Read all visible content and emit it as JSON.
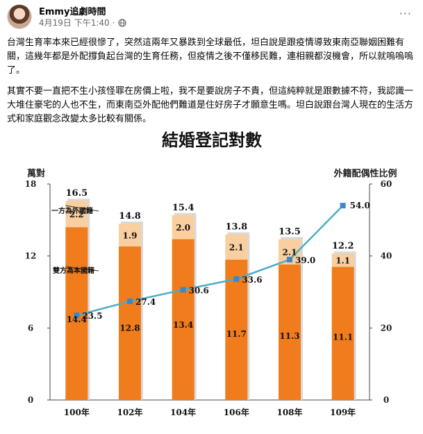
{
  "post": {
    "author": "Emmy追劇時間",
    "date": "4月19日 下午1:40",
    "separator": "·",
    "more": "···",
    "paragraphs": [
      "台灣生育率本來已經很慘了，突然這兩年又暴跌到全球最低，坦白說是跟疫情導致東南亞聯姻困難有關，這幾年都是外配撐負起台灣的生育任務，但疫情之後不僅移民難，連相親都沒機會，所以就嗚嗚嗚了。",
      "其實不要一直把不生小孩怪罪在房價上啦，我不是要說房子不貴，但這純粹就是跟數據不符，我認識一大堆住豪宅的人也不生，而東南亞外配他們難道是住好房子才願意生嗎。坦白說跟台灣人現在的生活方式和家庭觀念改變太多比較有關係。"
    ]
  },
  "colors": {
    "bar_base": "#f07c1e",
    "bar_top": "#f9cfa0",
    "line": "#4bacc6",
    "marker": "#3f86c4"
  },
  "chart_data": {
    "type": "bar",
    "title": "結婚登記對數",
    "ylabel_left": "萬對",
    "ylabel_right": "外籍配偶性比例",
    "ylim_left": [
      0,
      18
    ],
    "yticks_left": [
      "0",
      "6",
      "12",
      "18"
    ],
    "ylim_right": [
      0,
      60
    ],
    "yticks_right": [
      "0",
      "20",
      "40",
      "60"
    ],
    "categories": [
      "100年",
      "102年",
      "104年",
      "106年",
      "108年",
      "109年"
    ],
    "totals": [
      "16.5",
      "14.8",
      "15.4",
      "13.8",
      "13.5",
      "12.2"
    ],
    "series": [
      {
        "name": "雙方為本國籍",
        "values": [
          14.4,
          12.8,
          13.4,
          11.7,
          11.3,
          11.1
        ],
        "labels": [
          "14.4",
          "12.8",
          "13.4",
          "11.7",
          "11.3",
          "11.1"
        ]
      },
      {
        "name": "一方為外國籍",
        "values": [
          2.2,
          1.9,
          2.0,
          2.1,
          2.1,
          1.1
        ],
        "labels": [
          "2.2",
          "1.9",
          "2.0",
          "2.1",
          "2.1",
          "1.1"
        ]
      }
    ],
    "line": {
      "values": [
        23.5,
        27.4,
        30.6,
        33.6,
        39.0,
        54.0
      ],
      "labels": [
        "23.5",
        "27.4",
        "30.6",
        "33.6",
        "39.0",
        "54.0"
      ]
    }
  }
}
